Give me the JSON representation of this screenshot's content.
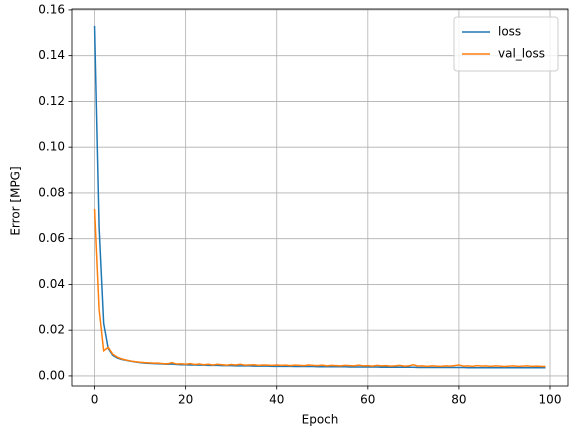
{
  "chart_data": {
    "type": "line",
    "xlabel": "Epoch",
    "ylabel": "Error [MPG]",
    "x": [
      0,
      1,
      2,
      3,
      4,
      5,
      6,
      7,
      8,
      9,
      10,
      11,
      12,
      13,
      14,
      15,
      16,
      17,
      18,
      19,
      20,
      21,
      22,
      23,
      24,
      25,
      26,
      27,
      28,
      29,
      30,
      31,
      32,
      33,
      34,
      35,
      36,
      37,
      38,
      39,
      40,
      41,
      42,
      43,
      44,
      45,
      46,
      47,
      48,
      49,
      50,
      51,
      52,
      53,
      54,
      55,
      56,
      57,
      58,
      59,
      60,
      61,
      62,
      63,
      64,
      65,
      66,
      67,
      68,
      69,
      70,
      71,
      72,
      73,
      74,
      75,
      76,
      77,
      78,
      79,
      80,
      81,
      82,
      83,
      84,
      85,
      86,
      87,
      88,
      89,
      90,
      91,
      92,
      93,
      94,
      95,
      96,
      97,
      98,
      99
    ],
    "series": [
      {
        "name": "loss",
        "color": "#1f77b4",
        "values": [
          0.153,
          0.065,
          0.023,
          0.012,
          0.009,
          0.0078,
          0.0072,
          0.0068,
          0.0064,
          0.0061,
          0.0058,
          0.0056,
          0.0055,
          0.0054,
          0.0053,
          0.0052,
          0.0051,
          0.0052,
          0.005,
          0.0049,
          0.0049,
          0.0048,
          0.0048,
          0.0047,
          0.0047,
          0.0046,
          0.0046,
          0.0046,
          0.0045,
          0.0045,
          0.0045,
          0.0044,
          0.0044,
          0.0044,
          0.0044,
          0.0043,
          0.0043,
          0.0043,
          0.0043,
          0.0042,
          0.0042,
          0.0042,
          0.0042,
          0.0042,
          0.0041,
          0.0041,
          0.0041,
          0.0041,
          0.0041,
          0.004,
          0.004,
          0.004,
          0.004,
          0.004,
          0.004,
          0.004,
          0.0039,
          0.0039,
          0.0039,
          0.0039,
          0.0039,
          0.0039,
          0.0039,
          0.0038,
          0.0038,
          0.0038,
          0.0038,
          0.0038,
          0.0038,
          0.0038,
          0.0038,
          0.0037,
          0.0037,
          0.0037,
          0.0037,
          0.0037,
          0.0037,
          0.0037,
          0.0037,
          0.0037,
          0.0037,
          0.0037,
          0.0036,
          0.0036,
          0.0036,
          0.0036,
          0.0036,
          0.0036,
          0.0036,
          0.0036,
          0.0036,
          0.0036,
          0.0036,
          0.0036,
          0.0036,
          0.0036,
          0.0036,
          0.0036,
          0.0036,
          0.0036
        ]
      },
      {
        "name": "val_loss",
        "color": "#ff7f0e",
        "values": [
          0.073,
          0.029,
          0.011,
          0.0125,
          0.0095,
          0.0082,
          0.0074,
          0.0069,
          0.0065,
          0.0062,
          0.006,
          0.0058,
          0.0057,
          0.0056,
          0.0056,
          0.0054,
          0.0053,
          0.0058,
          0.0052,
          0.0053,
          0.0051,
          0.0054,
          0.005,
          0.0052,
          0.0049,
          0.0051,
          0.0048,
          0.0051,
          0.0049,
          0.0047,
          0.005,
          0.0048,
          0.0051,
          0.0047,
          0.0048,
          0.0049,
          0.0046,
          0.0048,
          0.0047,
          0.0046,
          0.0048,
          0.0046,
          0.0047,
          0.0045,
          0.0047,
          0.0046,
          0.0045,
          0.0048,
          0.0046,
          0.0045,
          0.0047,
          0.0044,
          0.0046,
          0.0045,
          0.0044,
          0.0046,
          0.0045,
          0.0044,
          0.0047,
          0.0044,
          0.0045,
          0.0043,
          0.0046,
          0.0044,
          0.0045,
          0.0043,
          0.0044,
          0.0046,
          0.0043,
          0.0044,
          0.0049,
          0.0043,
          0.0044,
          0.0042,
          0.0044,
          0.0043,
          0.0042,
          0.0044,
          0.0043,
          0.0045,
          0.0048,
          0.0043,
          0.0044,
          0.0042,
          0.0045,
          0.0043,
          0.0044,
          0.0042,
          0.0044,
          0.0043,
          0.0041,
          0.0043,
          0.0044,
          0.0042,
          0.0043,
          0.0044,
          0.0042,
          0.0043,
          0.0042,
          0.0041
        ]
      }
    ],
    "xlim": [
      -4.95,
      103.95
    ],
    "xticks": [
      0,
      20,
      40,
      60,
      80,
      100
    ],
    "ylim": [
      -0.0044,
      0.1604
    ],
    "yticks": [
      {
        "value": 0,
        "label": "0.00"
      },
      {
        "value": 0.02,
        "label": "0.02"
      },
      {
        "value": 0.04,
        "label": "0.04"
      },
      {
        "value": 0.06,
        "label": "0.06"
      },
      {
        "value": 0.08,
        "label": "0.08"
      },
      {
        "value": 0.1,
        "label": "0.10"
      },
      {
        "value": 0.12,
        "label": "0.12"
      },
      {
        "value": 0.14,
        "label": "0.14"
      },
      {
        "value": 0.16,
        "label": "0.16"
      }
    ],
    "grid": true,
    "legend": "upper-right"
  }
}
